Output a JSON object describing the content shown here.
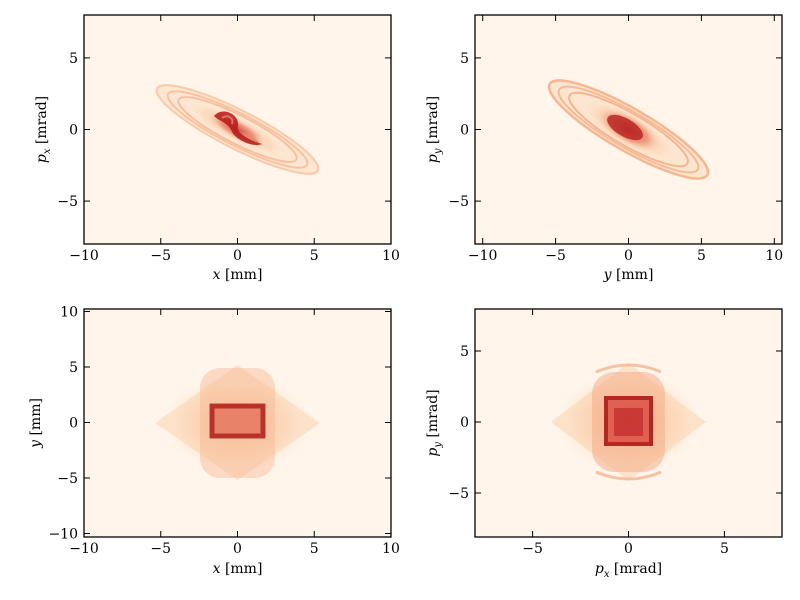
{
  "chart_data": [
    {
      "type": "heatmap",
      "id": "x-px",
      "xlabel": "x [mm]",
      "ylabel": "p_x [mrad]",
      "xlim": [
        -10,
        10
      ],
      "ylim": [
        -8,
        8
      ],
      "xticks": [
        -10,
        -5,
        0,
        5,
        10
      ],
      "yticks": [
        -5,
        0,
        5
      ],
      "colormap": "OrRd",
      "distribution": "tilted elliptical halo (negative correlation), dense S-shaped core",
      "extent": {
        "x": [
          -5.5,
          5.5
        ],
        "y": [
          -3.8,
          3.8
        ]
      }
    },
    {
      "type": "heatmap",
      "id": "y-py",
      "xlabel": "y [mm]",
      "ylabel": "p_y [mrad]",
      "xlim": [
        -10,
        10
      ],
      "ylim": [
        -8,
        8
      ],
      "xticks": [
        -10,
        -5,
        0,
        5,
        10
      ],
      "yticks": [
        -5,
        0,
        5
      ],
      "colormap": "OrRd",
      "distribution": "tilted elliptical halo (negative correlation), dense central core",
      "extent": {
        "x": [
          -5.5,
          5.5
        ],
        "y": [
          -3.8,
          3.8
        ]
      }
    },
    {
      "type": "heatmap",
      "id": "x-y",
      "xlabel": "x [mm]",
      "ylabel": "y [mm]",
      "xlim": [
        -10,
        10
      ],
      "ylim": [
        -10,
        10
      ],
      "xticks": [
        -10,
        -5,
        0,
        5,
        10
      ],
      "yticks": [
        -10,
        -5,
        0,
        5,
        10
      ],
      "colormap": "OrRd",
      "distribution": "diamond-shaped halo with dense rectangular core",
      "extent": {
        "x": [
          -5.5,
          5.5
        ],
        "y": [
          -5,
          5
        ]
      }
    },
    {
      "type": "heatmap",
      "id": "px-py",
      "xlabel": "p_x [mrad]",
      "ylabel": "p_y [mrad]",
      "xlim": [
        -8,
        8
      ],
      "ylim": [
        -8,
        8
      ],
      "xticks": [
        -5,
        0,
        5
      ],
      "yticks": [
        -5,
        0,
        5
      ],
      "colormap": "OrRd",
      "distribution": "diamond-shaped halo with dense square core",
      "extent": {
        "x": [
          -4,
          4
        ],
        "y": [
          -4,
          4
        ]
      }
    }
  ],
  "labels": {
    "x_mm": "x",
    "y_mm": "y",
    "px": "p",
    "px_sub": "x",
    "py": "p",
    "py_sub": "y",
    "mm_unit": "[mm]",
    "mrad_unit": "[mrad]"
  },
  "colors": {
    "background": "#fff5eb",
    "light": "#fdd9b4",
    "mid": "#f08a5e",
    "dark": "#c51b1b",
    "darkest": "#8b0a0a"
  }
}
